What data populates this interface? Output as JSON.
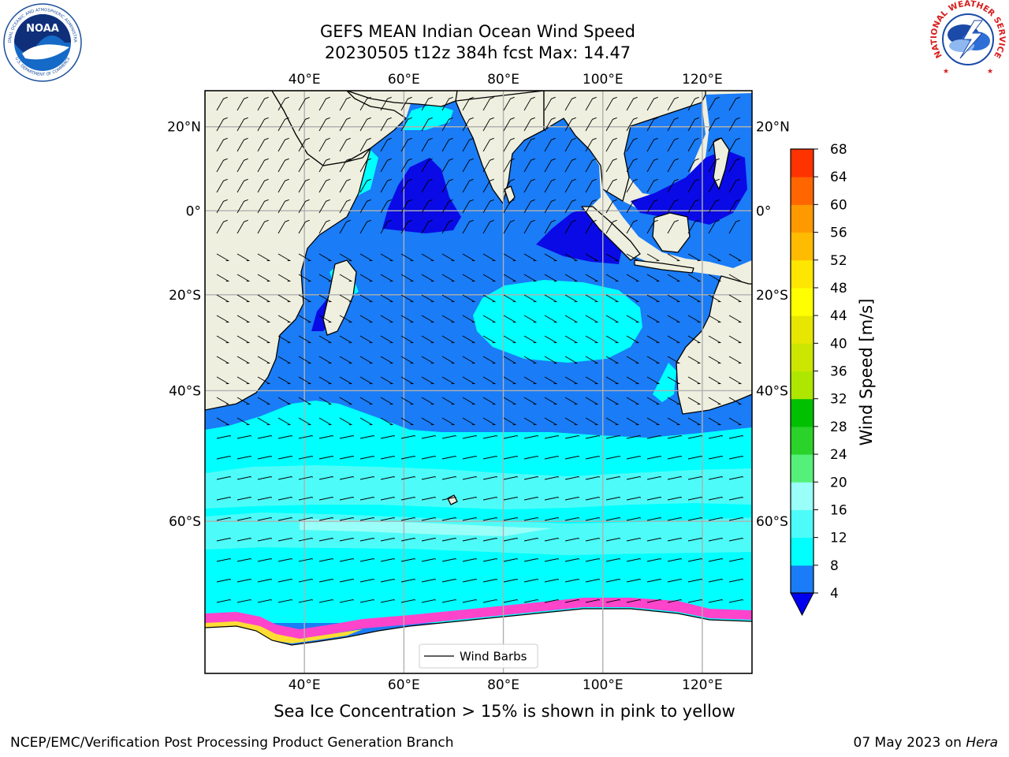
{
  "header": {
    "title_line1": "GEFS MEAN Indian Ocean Wind Speed",
    "title_line2": "20230505 t12z 384h fcst   Max: 14.47"
  },
  "map": {
    "lon_range": [
      20,
      130
    ],
    "lat_range": [
      -74,
      28
    ],
    "lon_ticks": [
      {
        "value": 40,
        "label": "40°E"
      },
      {
        "value": 60,
        "label": "60°E"
      },
      {
        "value": 80,
        "label": "80°E"
      },
      {
        "value": 100,
        "label": "100°E"
      },
      {
        "value": 120,
        "label": "120°E"
      }
    ],
    "lat_ticks": [
      {
        "value": 20,
        "label": "20°N"
      },
      {
        "value": 0,
        "label": "0°"
      },
      {
        "value": -20,
        "label": "20°S"
      },
      {
        "value": -40,
        "label": "40°S"
      },
      {
        "value": -60,
        "label": "60°S"
      }
    ],
    "legend_label": "Wind Barbs",
    "colors": {
      "land": "#efefdf",
      "ocean_4_8": "#1a7cf6",
      "ocean_0_4": "#0a0ae6",
      "ocean_8_12": "#00ffff",
      "ocean_12_16": "#4dfcf8",
      "ocean_16_20": "#99fff8",
      "antarctica": "#ffffff",
      "sea_ice": [
        "#ff44cc",
        "#ff77dd",
        "#ffaa55",
        "#ffdd33"
      ]
    }
  },
  "colorbar": {
    "label": "Wind Speed [m/s]",
    "ticks": [
      "4",
      "8",
      "12",
      "16",
      "20",
      "24",
      "28",
      "32",
      "36",
      "40",
      "44",
      "48",
      "52",
      "56",
      "60",
      "64",
      "68"
    ],
    "colors": [
      "#1a7cf6",
      "#00ffff",
      "#4dfcf8",
      "#99fff8",
      "#55f07a",
      "#2ad22a",
      "#00c000",
      "#aee600",
      "#cce600",
      "#e6e600",
      "#ffff00",
      "#ffe600",
      "#ffbb00",
      "#ff9900",
      "#ff6600",
      "#ff3300",
      "#ff0000"
    ],
    "under_color": "#0000ee"
  },
  "caption": "Sea Ice Concentration > 15% is shown in pink to yellow",
  "footer": {
    "left": "NCEP/EMC/Verification Post Processing Product Generation Branch",
    "right_prefix": "07 May 2023 on ",
    "right_italic": "Hera"
  },
  "logos": {
    "noaa_text": "NOAA",
    "noaa_ring_top": "NATIONAL OCEANIC AND ATMOSPHERIC ADMINISTRATION",
    "noaa_ring_bottom": "U.S. DEPARTMENT OF COMMERCE",
    "nws_ring": "NATIONAL WEATHER SERVICE"
  }
}
